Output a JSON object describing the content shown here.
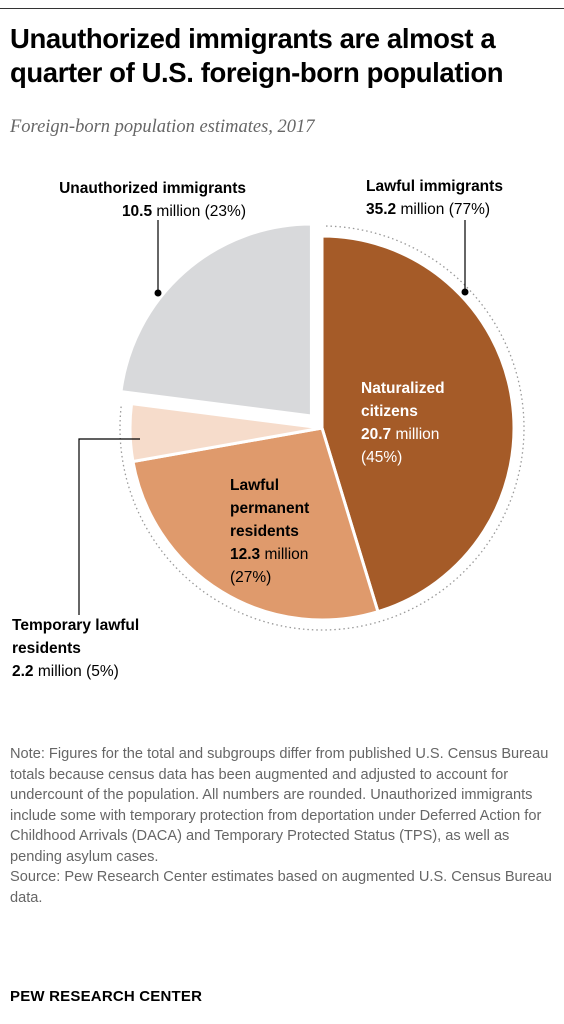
{
  "title": "Unauthorized immigrants are almost a quarter of U.S. foreign-born population",
  "subtitle": "Foreign-born population estimates, 2017",
  "chart_data": {
    "type": "pie",
    "unit": "million",
    "slices": [
      {
        "name_lines": [
          "Naturalized",
          "citizens"
        ],
        "value": 20.7,
        "value_text": "20.7",
        "pct": 45,
        "pct_text": "(45%)",
        "color": "#a55b28",
        "group": "lawful"
      },
      {
        "name_lines": [
          "Lawful",
          "permanent",
          "residents"
        ],
        "value": 12.3,
        "value_text": "12.3",
        "pct": 27,
        "pct_text": "(27%)",
        "color": "#df9a6c",
        "group": "lawful"
      },
      {
        "name_lines": [
          "Temporary lawful",
          "residents"
        ],
        "value": 2.2,
        "value_text": "2.2",
        "pct": 5,
        "pct_text": "(5%)",
        "color": "#f6dccb",
        "group": "lawful"
      },
      {
        "name_lines": [
          "Unauthorized immigrants"
        ],
        "value": 10.5,
        "value_text": "10.5",
        "pct": 23,
        "pct_text": "(23%)",
        "color": "#d8d9db",
        "group": "unauthorized"
      }
    ],
    "groups": [
      {
        "name": "Lawful immigrants",
        "value_text": "35.2",
        "pct_text": "(77%)"
      },
      {
        "name": "Unauthorized immigrants",
        "value_text": "10.5",
        "pct_text": "(23%)"
      }
    ],
    "unit_label": "million"
  },
  "note": "Note: Figures for the total and subgroups differ from published U.S. Census Bureau totals because census data has been augmented and adjusted to account for undercount of the population. All numbers are rounded. Unauthorized immigrants include some with temporary protection from deportation under Deferred Action for Childhood Arrivals (DACA) and Temporary Protected Status (TPS), as well as pending asylum cases.",
  "source": "Source: Pew Research Center estimates based on augmented U.S. Census Bureau data.",
  "credit": "PEW RESEARCH CENTER"
}
